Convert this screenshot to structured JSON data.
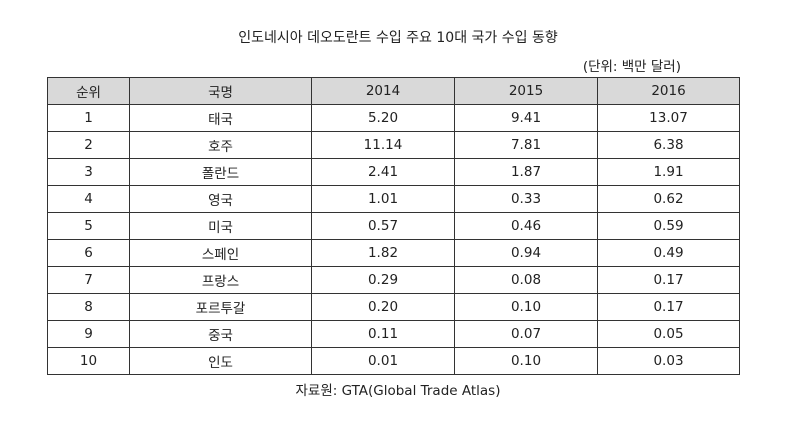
{
  "title": "인도네시아 데오도란트 수입 주요 10대 국가 수입 동향",
  "unit": "(단위: 백만 달러)",
  "table": {
    "headers": [
      "순위",
      "국명",
      "2014",
      "2015",
      "2016"
    ],
    "rows": [
      [
        "1",
        "태국",
        "5.20",
        "9.41",
        "13.07"
      ],
      [
        "2",
        "호주",
        "11.14",
        "7.81",
        "6.38"
      ],
      [
        "3",
        "폴란드",
        "2.41",
        "1.87",
        "1.91"
      ],
      [
        "4",
        "영국",
        "1.01",
        "0.33",
        "0.62"
      ],
      [
        "5",
        "미국",
        "0.57",
        "0.46",
        "0.59"
      ],
      [
        "6",
        "스페인",
        "1.82",
        "0.94",
        "0.49"
      ],
      [
        "7",
        "프랑스",
        "0.29",
        "0.08",
        "0.17"
      ],
      [
        "8",
        "포르투갈",
        "0.20",
        "0.10",
        "0.17"
      ],
      [
        "9",
        "중국",
        "0.11",
        "0.07",
        "0.05"
      ],
      [
        "10",
        "인도",
        "0.01",
        "0.10",
        "0.03"
      ]
    ]
  },
  "source": "자료원: GTA(Global Trade Atlas)"
}
